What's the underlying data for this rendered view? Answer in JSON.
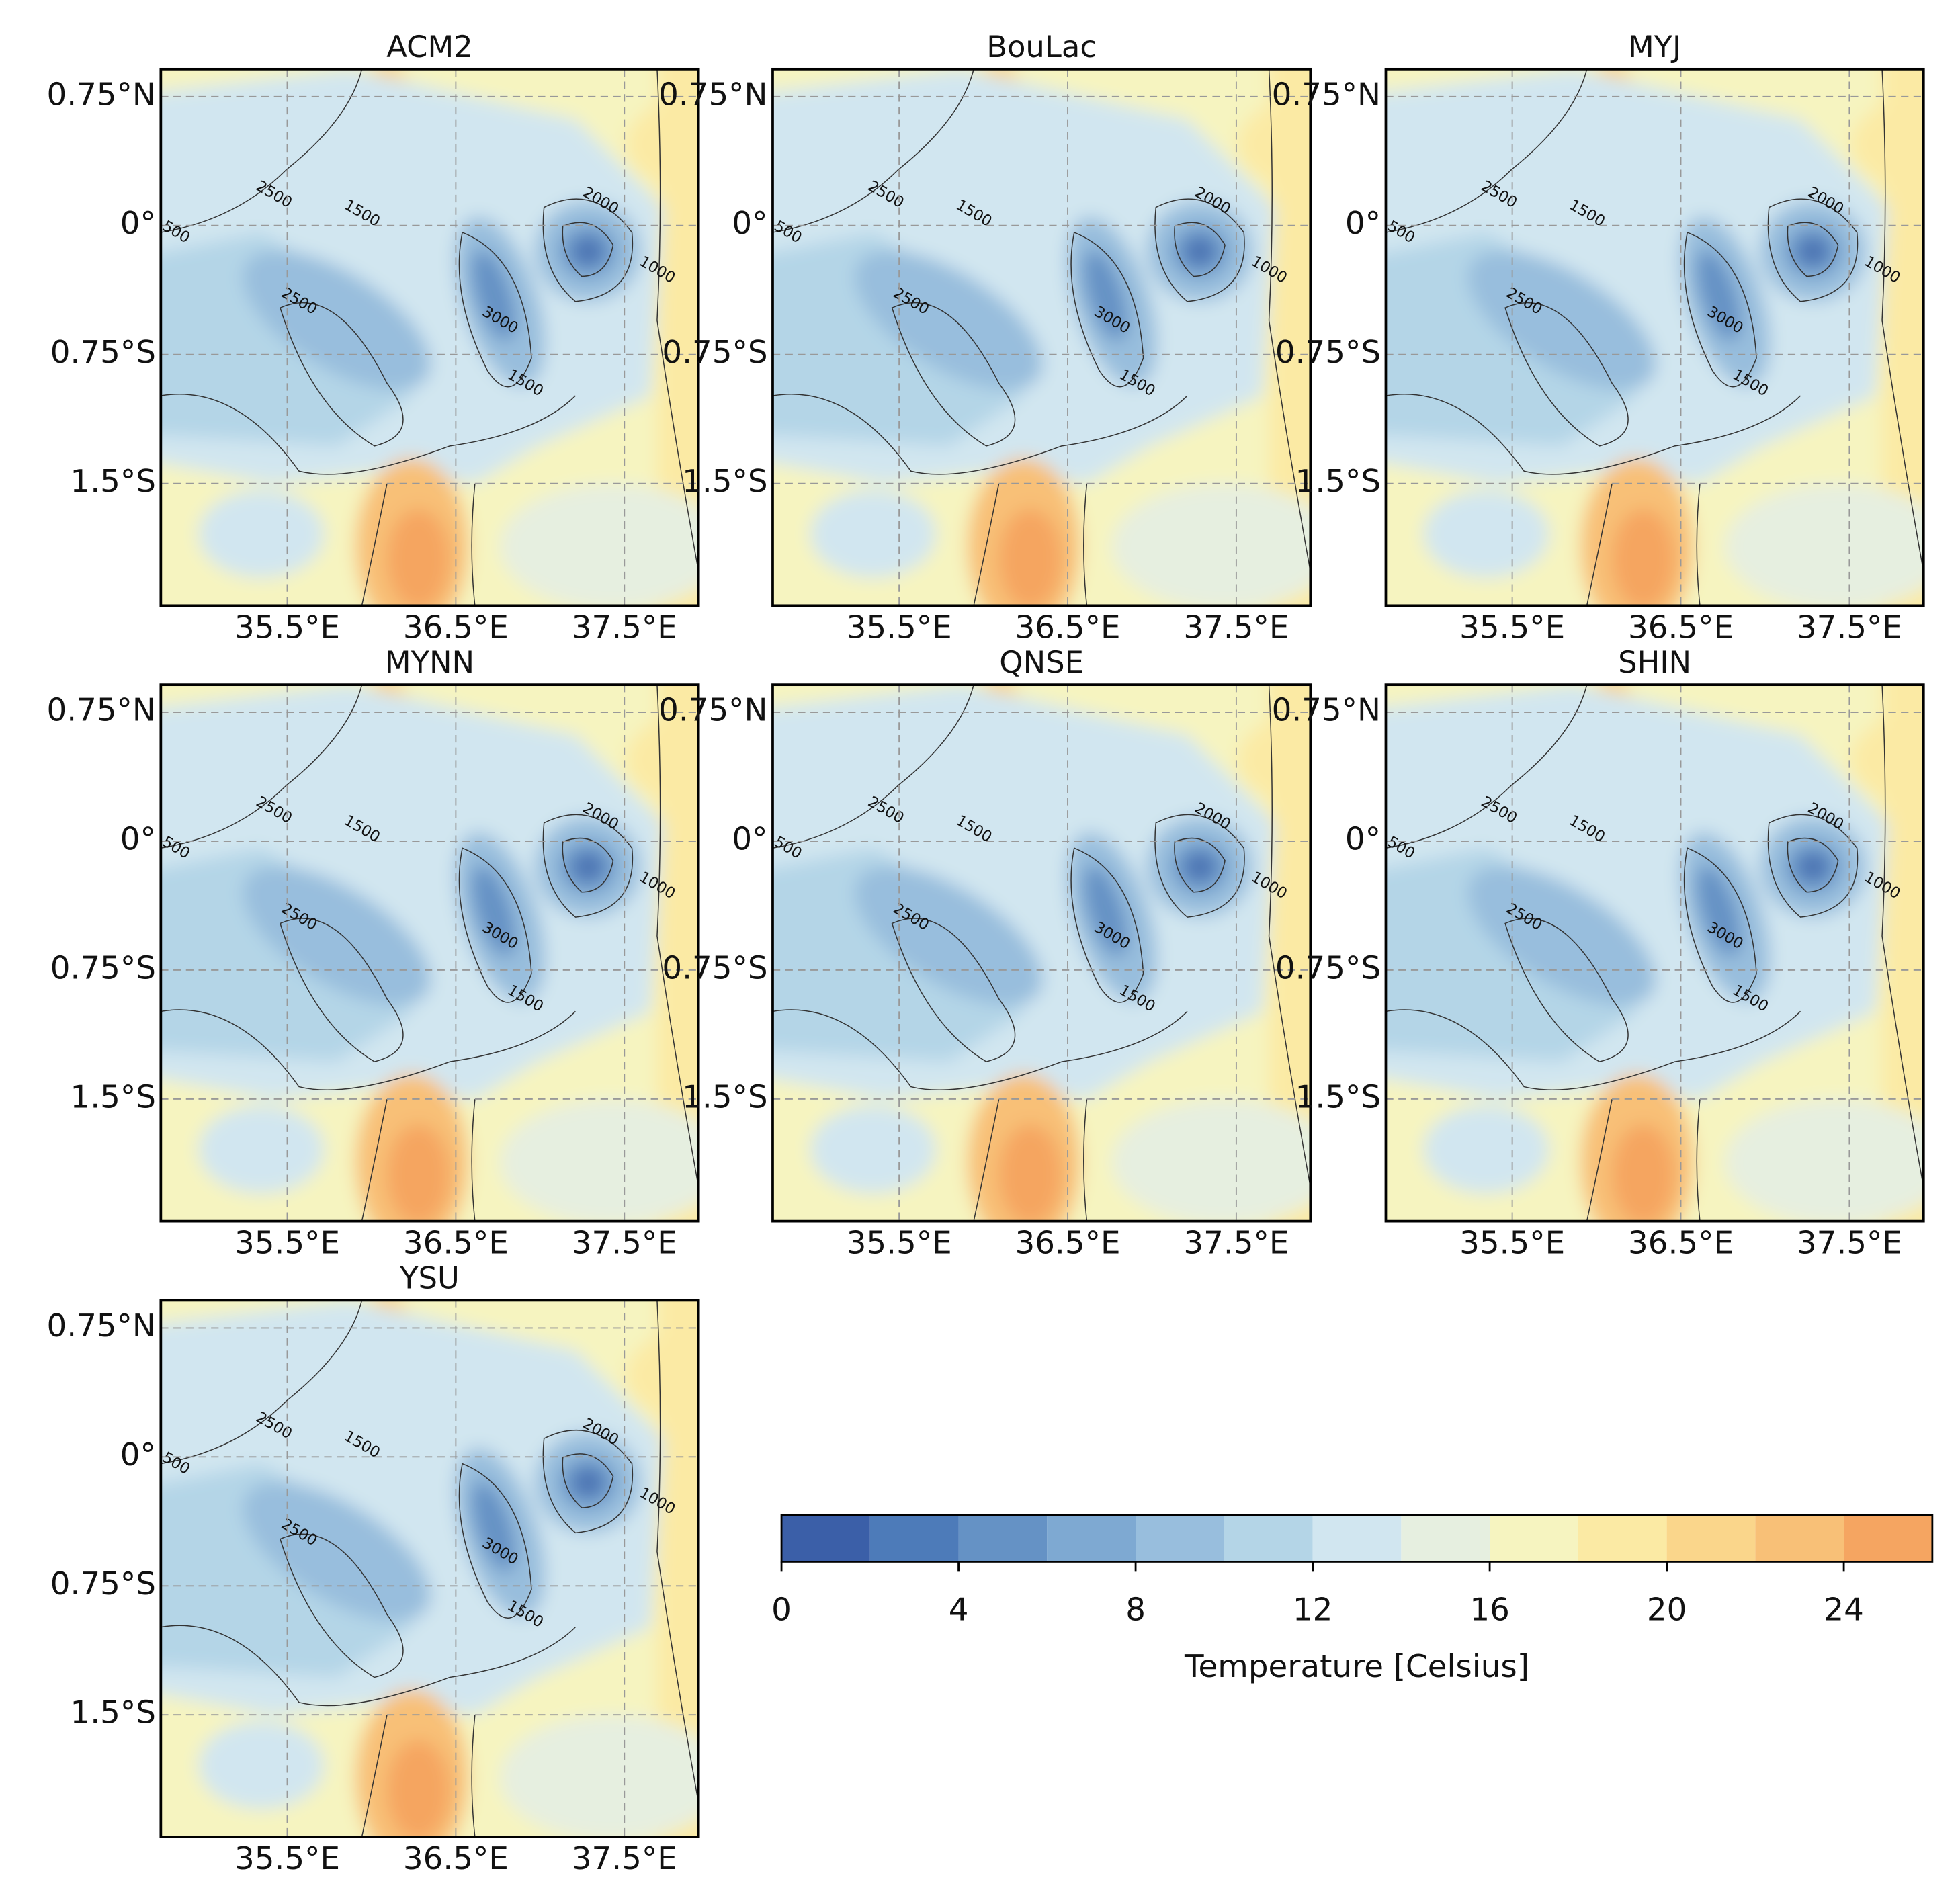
{
  "panels": [
    {
      "title": "ACM2"
    },
    {
      "title": "BouLac"
    },
    {
      "title": "MYJ"
    },
    {
      "title": "MYNN"
    },
    {
      "title": "QNSE"
    },
    {
      "title": "SHIN"
    },
    {
      "title": "YSU"
    }
  ],
  "map": {
    "lonlim": [
      34.75,
      37.94
    ],
    "latlim": [
      -2.21,
      0.91
    ],
    "lat_ticks": [
      {
        "value": 0.75,
        "label": "0.75°N"
      },
      {
        "value": 0,
        "label": "0°"
      },
      {
        "value": -0.75,
        "label": "0.75°S"
      },
      {
        "value": -1.5,
        "label": "1.5°S"
      }
    ],
    "lon_ticks": [
      {
        "value": 35.5,
        "label": "35.5°E"
      },
      {
        "value": 36.5,
        "label": "36.5°E"
      },
      {
        "value": 37.5,
        "label": "37.5°E"
      }
    ],
    "contour_labels": [
      "2000",
      "1500",
      "2500",
      "3000",
      "1000",
      "500"
    ]
  },
  "colorbar": {
    "label": "Temperature [Celsius]",
    "boundaries": [
      0,
      2,
      4,
      6,
      8,
      10,
      12,
      14,
      16,
      18,
      20,
      22,
      24,
      26
    ],
    "colors": [
      "#3b5fa8",
      "#4d7bb9",
      "#6592c5",
      "#7ea9d2",
      "#98bedd",
      "#b4d5e7",
      "#d1e6f0",
      "#e6efe0",
      "#f6f4c0",
      "#fbeaa4",
      "#fad68b",
      "#f8c077",
      "#f5a561"
    ],
    "ticks": [
      0,
      4,
      8,
      12,
      16,
      20,
      24
    ]
  }
}
